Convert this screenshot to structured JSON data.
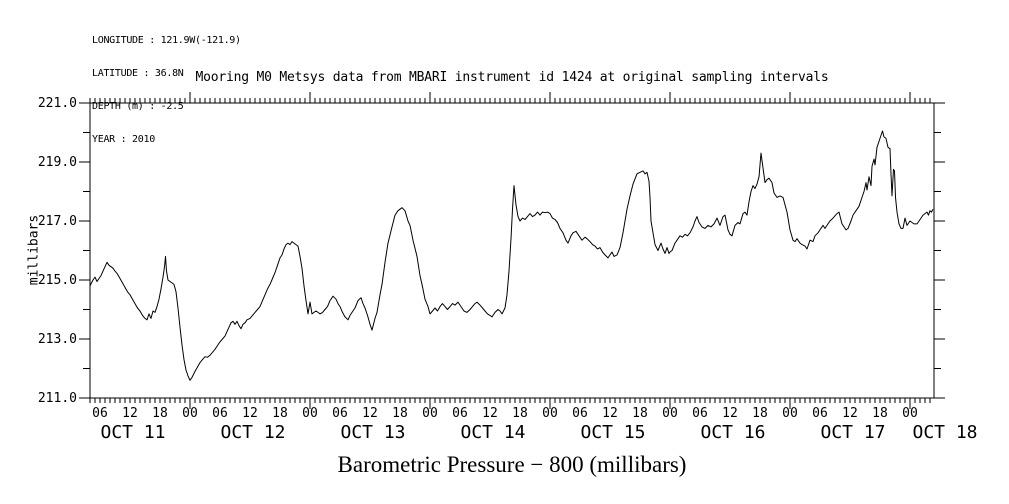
{
  "meta": {
    "longitude": "LONGITUDE : 121.9W(-121.9)",
    "latitude": "LATITUDE : 36.8N",
    "depth": "DEPTH (m) : -2.5",
    "year": "YEAR : 2010"
  },
  "title": "Mooring M0 Metsys data from MBARI instrument id 1424 at original sampling intervals",
  "bottom_title": "Barometric Pressure − 800 (millibars)",
  "y_axis": {
    "label": "millibars",
    "tick_labels": [
      "221.0",
      "219.0",
      "217.0",
      "215.0",
      "213.0",
      "211.0"
    ],
    "min": 211.0,
    "max": 221.0,
    "major_step": 2.0,
    "minor_step": 1.0
  },
  "x_axis": {
    "hour_labels": [
      "06",
      "12",
      "18",
      "00"
    ],
    "date_labels": [
      "OCT 11",
      "OCT 12",
      "OCT 13",
      "OCT 14",
      "OCT 15",
      "OCT 16",
      "OCT 17",
      "OCT 18"
    ],
    "hours_per_day": 24,
    "minor_tick_hours": 1,
    "label_step_hours": 6
  },
  "line_color": "#000000",
  "chart_data": {
    "type": "line",
    "title": "Mooring M0 Metsys data from MBARI instrument id 1424 at original sampling intervals",
    "ylabel": "millibars",
    "series_label": "Barometric Pressure − 800 (millibars)",
    "x_unit": "hours since 2010-10-11 00:00",
    "xlim": [
      4,
      172.8
    ],
    "ylim": [
      211.0,
      221.0
    ],
    "grid": false,
    "legend": false,
    "points": [
      [
        4,
        214.8
      ],
      [
        4.3,
        214.9
      ],
      [
        4.6,
        215.0
      ],
      [
        5,
        215.1
      ],
      [
        5.4,
        214.95
      ],
      [
        5.8,
        215.05
      ],
      [
        6.2,
        215.15
      ],
      [
        6.6,
        215.3
      ],
      [
        7,
        215.45
      ],
      [
        7.4,
        215.6
      ],
      [
        7.8,
        215.5
      ],
      [
        8.2,
        215.45
      ],
      [
        8.6,
        215.4
      ],
      [
        9,
        215.3
      ],
      [
        9.5,
        215.2
      ],
      [
        10,
        215.05
      ],
      [
        10.5,
        214.9
      ],
      [
        11,
        214.75
      ],
      [
        11.5,
        214.6
      ],
      [
        12,
        214.5
      ],
      [
        12.5,
        214.35
      ],
      [
        13,
        214.2
      ],
      [
        13.5,
        214.05
      ],
      [
        14,
        213.95
      ],
      [
        14.5,
        213.8
      ],
      [
        15,
        213.7
      ],
      [
        15.4,
        213.65
      ],
      [
        15.8,
        213.85
      ],
      [
        16.2,
        213.7
      ],
      [
        16.6,
        213.95
      ],
      [
        17,
        213.9
      ],
      [
        17.4,
        214.1
      ],
      [
        17.8,
        214.35
      ],
      [
        18.2,
        214.7
      ],
      [
        18.6,
        215.1
      ],
      [
        18.9,
        215.45
      ],
      [
        19.1,
        215.8
      ],
      [
        19.3,
        215.3
      ],
      [
        19.6,
        215.0
      ],
      [
        20,
        214.95
      ],
      [
        20.4,
        214.9
      ],
      [
        20.8,
        214.85
      ],
      [
        21.2,
        214.6
      ],
      [
        21.6,
        214.05
      ],
      [
        22,
        213.4
      ],
      [
        22.4,
        212.8
      ],
      [
        22.8,
        212.3
      ],
      [
        23.2,
        211.95
      ],
      [
        23.6,
        211.75
      ],
      [
        24,
        211.6
      ],
      [
        24.4,
        211.7
      ],
      [
        25,
        211.9
      ],
      [
        25.5,
        212.05
      ],
      [
        26,
        212.2
      ],
      [
        26.5,
        212.3
      ],
      [
        27,
        212.4
      ],
      [
        27.5,
        212.38
      ],
      [
        28,
        212.45
      ],
      [
        28.5,
        212.55
      ],
      [
        29,
        212.65
      ],
      [
        29.5,
        212.78
      ],
      [
        30,
        212.9
      ],
      [
        30.5,
        213.0
      ],
      [
        31,
        213.1
      ],
      [
        31.4,
        213.25
      ],
      [
        31.8,
        213.4
      ],
      [
        32.2,
        213.55
      ],
      [
        32.6,
        213.6
      ],
      [
        33,
        213.5
      ],
      [
        33.4,
        213.6
      ],
      [
        33.8,
        213.45
      ],
      [
        34.2,
        213.35
      ],
      [
        34.6,
        213.5
      ],
      [
        35,
        213.55
      ],
      [
        35.4,
        213.65
      ],
      [
        36,
        213.7
      ],
      [
        36.5,
        213.8
      ],
      [
        37,
        213.9
      ],
      [
        37.5,
        214.0
      ],
      [
        38,
        214.1
      ],
      [
        38.5,
        214.3
      ],
      [
        39,
        214.5
      ],
      [
        39.5,
        214.7
      ],
      [
        40,
        214.85
      ],
      [
        40.5,
        215.05
      ],
      [
        41,
        215.25
      ],
      [
        41.5,
        215.5
      ],
      [
        42,
        215.75
      ],
      [
        42.4,
        215.85
      ],
      [
        42.8,
        216.05
      ],
      [
        43.2,
        216.2
      ],
      [
        43.6,
        216.25
      ],
      [
        44,
        216.2
      ],
      [
        44.4,
        216.3
      ],
      [
        44.8,
        216.25
      ],
      [
        45.2,
        216.2
      ],
      [
        45.6,
        216.15
      ],
      [
        46,
        215.8
      ],
      [
        46.4,
        215.4
      ],
      [
        46.8,
        214.8
      ],
      [
        47.2,
        214.3
      ],
      [
        47.6,
        213.85
      ],
      [
        48,
        214.25
      ],
      [
        48.4,
        213.85
      ],
      [
        48.8,
        213.9
      ],
      [
        49.2,
        213.95
      ],
      [
        49.6,
        213.9
      ],
      [
        50,
        213.85
      ],
      [
        50.5,
        213.9
      ],
      [
        51,
        214.0
      ],
      [
        51.5,
        214.1
      ],
      [
        52,
        214.3
      ],
      [
        52.6,
        214.45
      ],
      [
        53.2,
        214.35
      ],
      [
        53.6,
        214.2
      ],
      [
        54,
        214.1
      ],
      [
        54.5,
        213.9
      ],
      [
        55,
        213.75
      ],
      [
        55.6,
        213.65
      ],
      [
        56,
        213.8
      ],
      [
        56.4,
        213.9
      ],
      [
        57,
        214.05
      ],
      [
        57.6,
        214.3
      ],
      [
        58.2,
        214.4
      ],
      [
        58.6,
        214.2
      ],
      [
        59,
        214.05
      ],
      [
        59.5,
        213.8
      ],
      [
        60,
        213.5
      ],
      [
        60.4,
        213.3
      ],
      [
        61,
        213.7
      ],
      [
        61.4,
        213.9
      ],
      [
        62,
        214.5
      ],
      [
        62.4,
        214.85
      ],
      [
        63,
        215.6
      ],
      [
        63.6,
        216.25
      ],
      [
        64.4,
        216.8
      ],
      [
        65,
        217.2
      ],
      [
        65.6,
        217.35
      ],
      [
        66,
        217.4
      ],
      [
        66.4,
        217.45
      ],
      [
        67,
        217.35
      ],
      [
        67.6,
        217.0
      ],
      [
        68,
        216.85
      ],
      [
        68.6,
        216.35
      ],
      [
        69.4,
        215.8
      ],
      [
        70,
        215.15
      ],
      [
        70.4,
        214.85
      ],
      [
        71,
        214.35
      ],
      [
        71.6,
        214.1
      ],
      [
        72,
        213.85
      ],
      [
        72.5,
        213.95
      ],
      [
        73,
        214.05
      ],
      [
        73.5,
        213.95
      ],
      [
        74,
        214.1
      ],
      [
        74.5,
        214.2
      ],
      [
        75,
        214.1
      ],
      [
        75.5,
        214.0
      ],
      [
        76,
        214.1
      ],
      [
        76.5,
        214.2
      ],
      [
        77,
        214.15
      ],
      [
        77.6,
        214.25
      ],
      [
        78.2,
        214.1
      ],
      [
        78.8,
        213.95
      ],
      [
        79.4,
        213.9
      ],
      [
        80,
        214.0
      ],
      [
        80.5,
        214.1
      ],
      [
        81,
        214.2
      ],
      [
        81.4,
        214.25
      ],
      [
        82,
        214.15
      ],
      [
        82.5,
        214.05
      ],
      [
        83,
        213.95
      ],
      [
        83.5,
        213.85
      ],
      [
        84,
        213.8
      ],
      [
        84.4,
        213.75
      ],
      [
        85,
        213.9
      ],
      [
        85.6,
        214.0
      ],
      [
        86,
        213.95
      ],
      [
        86.4,
        213.85
      ],
      [
        87,
        214.05
      ],
      [
        87.4,
        214.5
      ],
      [
        87.8,
        215.3
      ],
      [
        88.2,
        216.4
      ],
      [
        88.5,
        217.4
      ],
      [
        88.8,
        218.2
      ],
      [
        89.2,
        217.55
      ],
      [
        89.6,
        217.15
      ],
      [
        90,
        217.0
      ],
      [
        90.5,
        217.1
      ],
      [
        91,
        217.05
      ],
      [
        91.5,
        217.15
      ],
      [
        92,
        217.25
      ],
      [
        92.5,
        217.15
      ],
      [
        93,
        217.2
      ],
      [
        93.5,
        217.3
      ],
      [
        94,
        217.2
      ],
      [
        94.5,
        217.3
      ],
      [
        95,
        217.28
      ],
      [
        95.5,
        217.3
      ],
      [
        96,
        217.25
      ],
      [
        96.5,
        217.1
      ],
      [
        97,
        217.05
      ],
      [
        97.5,
        216.95
      ],
      [
        98,
        216.75
      ],
      [
        98.6,
        216.6
      ],
      [
        99.2,
        216.35
      ],
      [
        99.6,
        216.25
      ],
      [
        100.2,
        216.5
      ],
      [
        100.6,
        216.6
      ],
      [
        101.2,
        216.65
      ],
      [
        101.8,
        216.5
      ],
      [
        102.4,
        216.35
      ],
      [
        103,
        216.45
      ],
      [
        103.4,
        216.4
      ],
      [
        104,
        216.3
      ],
      [
        104.5,
        216.2
      ],
      [
        105,
        216.15
      ],
      [
        105.5,
        216.05
      ],
      [
        106,
        216.1
      ],
      [
        106.5,
        215.95
      ],
      [
        107,
        215.85
      ],
      [
        107.6,
        215.75
      ],
      [
        108,
        215.85
      ],
      [
        108.4,
        215.95
      ],
      [
        108.8,
        215.8
      ],
      [
        109.4,
        215.85
      ],
      [
        110,
        216.1
      ],
      [
        110.6,
        216.6
      ],
      [
        111.4,
        217.4
      ],
      [
        112,
        217.85
      ],
      [
        112.6,
        218.25
      ],
      [
        113.4,
        218.6
      ],
      [
        114,
        218.65
      ],
      [
        114.6,
        218.7
      ],
      [
        115,
        218.6
      ],
      [
        115.4,
        218.65
      ],
      [
        115.8,
        218.35
      ],
      [
        116,
        217.8
      ],
      [
        116.2,
        217.0
      ],
      [
        116.6,
        216.6
      ],
      [
        117,
        216.2
      ],
      [
        117.6,
        216.0
      ],
      [
        118.2,
        216.25
      ],
      [
        118.6,
        216.05
      ],
      [
        119,
        215.9
      ],
      [
        119.4,
        216.1
      ],
      [
        119.8,
        215.9
      ],
      [
        120,
        215.95
      ],
      [
        120.4,
        216.0
      ],
      [
        121,
        216.25
      ],
      [
        121.4,
        216.35
      ],
      [
        122,
        216.5
      ],
      [
        122.5,
        216.45
      ],
      [
        123,
        216.55
      ],
      [
        123.5,
        216.5
      ],
      [
        124,
        216.6
      ],
      [
        124.6,
        216.8
      ],
      [
        125,
        217.0
      ],
      [
        125.4,
        217.15
      ],
      [
        125.8,
        216.95
      ],
      [
        126.4,
        216.8
      ],
      [
        127,
        216.75
      ],
      [
        127.6,
        216.85
      ],
      [
        128.2,
        216.8
      ],
      [
        128.8,
        216.9
      ],
      [
        129.4,
        217.1
      ],
      [
        130,
        216.85
      ],
      [
        130.6,
        217.15
      ],
      [
        131,
        217.2
      ],
      [
        131.6,
        216.7
      ],
      [
        132,
        216.55
      ],
      [
        132.4,
        216.5
      ],
      [
        133,
        216.85
      ],
      [
        133.6,
        216.95
      ],
      [
        134,
        216.9
      ],
      [
        134.6,
        217.25
      ],
      [
        135,
        217.3
      ],
      [
        135.4,
        217.2
      ],
      [
        135.8,
        217.65
      ],
      [
        136.2,
        218.0
      ],
      [
        136.6,
        218.2
      ],
      [
        137,
        218.1
      ],
      [
        137.4,
        218.25
      ],
      [
        137.8,
        218.5
      ],
      [
        138.2,
        219.3
      ],
      [
        138.6,
        218.8
      ],
      [
        139,
        218.3
      ],
      [
        139.4,
        218.4
      ],
      [
        139.8,
        218.45
      ],
      [
        140.4,
        218.3
      ],
      [
        140.8,
        217.95
      ],
      [
        141.4,
        217.8
      ],
      [
        142,
        217.85
      ],
      [
        142.6,
        217.8
      ],
      [
        143,
        217.55
      ],
      [
        143.4,
        217.3
      ],
      [
        144,
        216.7
      ],
      [
        144.6,
        216.35
      ],
      [
        145,
        216.3
      ],
      [
        145.4,
        216.4
      ],
      [
        146,
        216.25
      ],
      [
        146.4,
        216.2
      ],
      [
        147,
        216.15
      ],
      [
        147.4,
        216.05
      ],
      [
        148,
        216.35
      ],
      [
        148.6,
        216.3
      ],
      [
        149,
        216.5
      ],
      [
        149.6,
        216.6
      ],
      [
        150,
        216.7
      ],
      [
        150.6,
        216.85
      ],
      [
        151,
        216.75
      ],
      [
        151.6,
        216.9
      ],
      [
        152,
        217.0
      ],
      [
        152.6,
        217.1
      ],
      [
        153.4,
        217.25
      ],
      [
        153.8,
        217.3
      ],
      [
        154.4,
        216.9
      ],
      [
        155.2,
        216.7
      ],
      [
        155.6,
        216.75
      ],
      [
        156.2,
        217.0
      ],
      [
        156.6,
        217.2
      ],
      [
        157.2,
        217.35
      ],
      [
        157.8,
        217.5
      ],
      [
        158.4,
        217.8
      ],
      [
        158.8,
        218.0
      ],
      [
        159.2,
        218.3
      ],
      [
        159.4,
        218.05
      ],
      [
        159.8,
        218.5
      ],
      [
        160.2,
        218.2
      ],
      [
        160.4,
        218.85
      ],
      [
        160.8,
        219.1
      ],
      [
        161,
        218.9
      ],
      [
        161.4,
        219.5
      ],
      [
        161.8,
        219.7
      ],
      [
        162.2,
        219.9
      ],
      [
        162.5,
        220.05
      ],
      [
        162.8,
        219.85
      ],
      [
        163.2,
        219.8
      ],
      [
        163.6,
        219.5
      ],
      [
        164,
        219.45
      ],
      [
        164.2,
        218.6
      ],
      [
        164.4,
        217.85
      ],
      [
        164.7,
        218.75
      ],
      [
        164.9,
        218.7
      ],
      [
        165.1,
        217.8
      ],
      [
        165.4,
        217.3
      ],
      [
        165.8,
        216.9
      ],
      [
        166.2,
        216.75
      ],
      [
        166.6,
        216.75
      ],
      [
        167,
        217.1
      ],
      [
        167.4,
        216.85
      ],
      [
        168,
        217.0
      ],
      [
        168.4,
        216.95
      ],
      [
        168.8,
        216.9
      ],
      [
        169.4,
        216.9
      ],
      [
        169.8,
        217.0
      ],
      [
        170.2,
        217.1
      ],
      [
        170.6,
        217.2
      ],
      [
        171,
        217.25
      ],
      [
        171.4,
        217.3
      ],
      [
        171.7,
        217.2
      ],
      [
        172,
        217.35
      ],
      [
        172.3,
        217.3
      ],
      [
        172.6,
        217.4
      ]
    ]
  }
}
